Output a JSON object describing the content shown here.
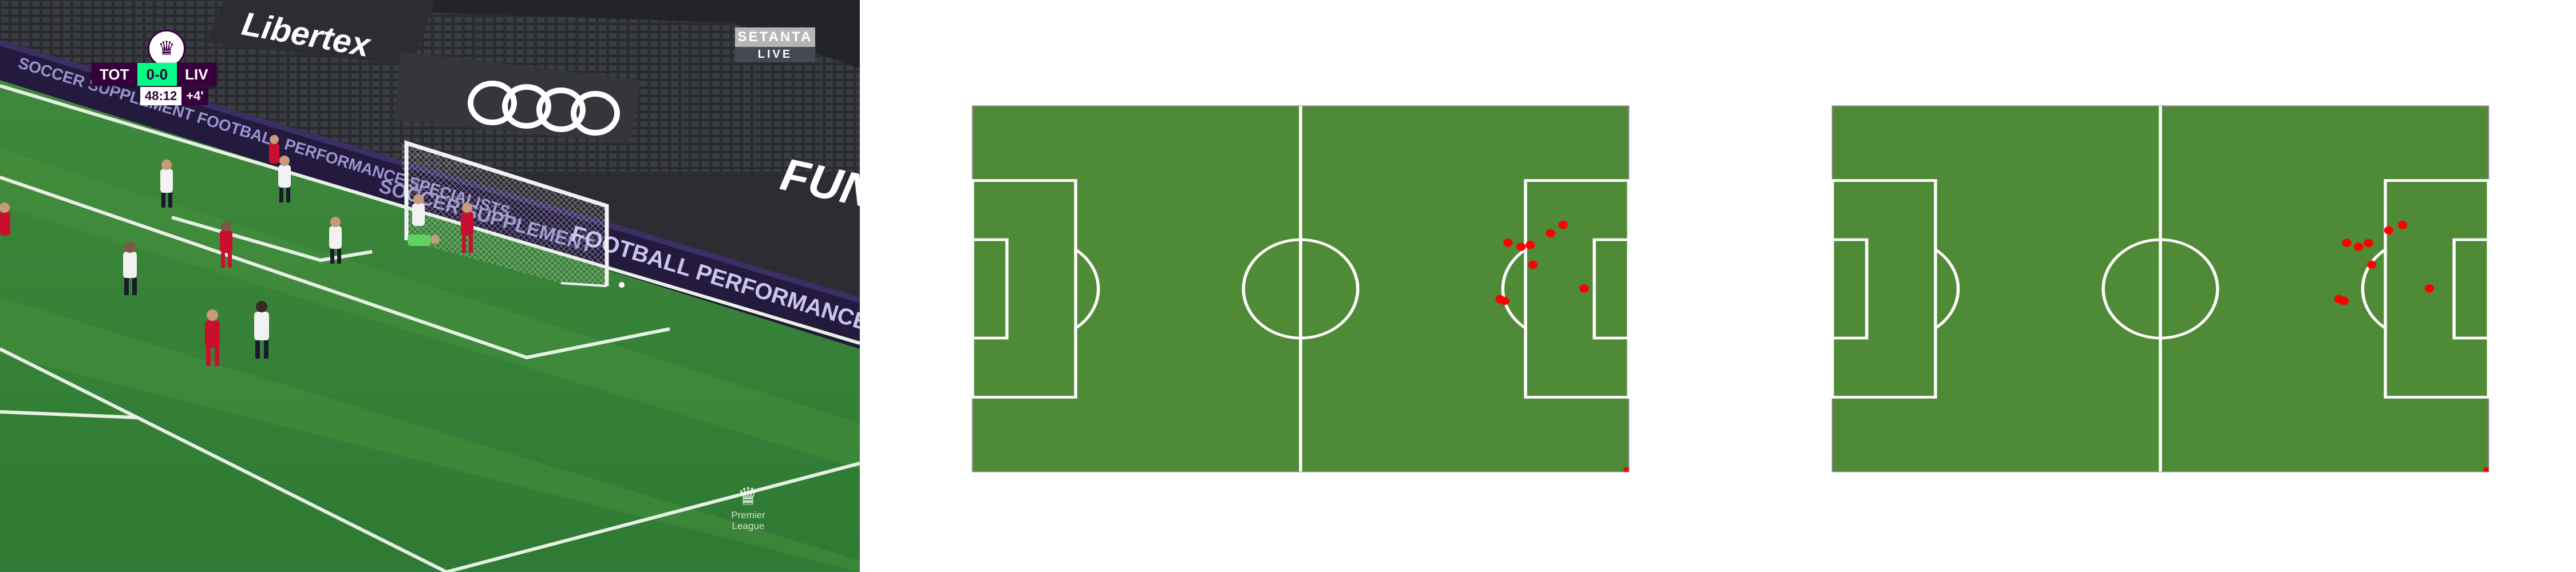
{
  "broadcast": {
    "scorebug": {
      "home": "TOT",
      "score": "0-0",
      "away": "LIV"
    },
    "clock": {
      "time": "48:12",
      "added": "+4'"
    },
    "channel": {
      "name": "SETANTA",
      "live": "LIVE"
    },
    "watermark": {
      "line1": "Premier",
      "line2": "League"
    },
    "crest_icon": "♛",
    "lion_icon": "♛",
    "banners": {
      "sponsor": "Libertex",
      "football": "FOOTBALL PERFORMANCE SPECIALISTS",
      "soccer": "SOCCER SUPPLEMENT",
      "top_left": "SOCCER SUPPLEMENT FOOTBALL PERFORMANCE SPECIALISTS",
      "fun": "FUN"
    }
  },
  "colors": {
    "pitch_green": "#4f8a36",
    "line_white": "#ffffff",
    "marker_red": "#ff0000",
    "premier_purple": "#37003c",
    "premier_green": "#00ff85"
  },
  "diagrams": [
    {
      "name": "pitch-left",
      "points": [
        {
          "x": 93.2,
          "y": 49.9
        },
        {
          "x": 90.0,
          "y": 32.5
        },
        {
          "x": 88.1,
          "y": 34.8
        },
        {
          "x": 85.0,
          "y": 38.0
        },
        {
          "x": 83.6,
          "y": 38.5
        },
        {
          "x": 81.6,
          "y": 37.4
        },
        {
          "x": 80.4,
          "y": 52.8
        },
        {
          "x": 81.1,
          "y": 53.3
        },
        {
          "x": 85.4,
          "y": 43.4
        }
      ]
    },
    {
      "name": "pitch-right",
      "points": [
        {
          "x": 91.0,
          "y": 49.9
        },
        {
          "x": 86.9,
          "y": 32.5
        },
        {
          "x": 84.8,
          "y": 34.0
        },
        {
          "x": 81.7,
          "y": 37.5
        },
        {
          "x": 80.2,
          "y": 38.5
        },
        {
          "x": 78.4,
          "y": 37.4
        },
        {
          "x": 77.2,
          "y": 52.8
        },
        {
          "x": 78.0,
          "y": 53.3
        },
        {
          "x": 82.2,
          "y": 43.4
        }
      ]
    }
  ]
}
